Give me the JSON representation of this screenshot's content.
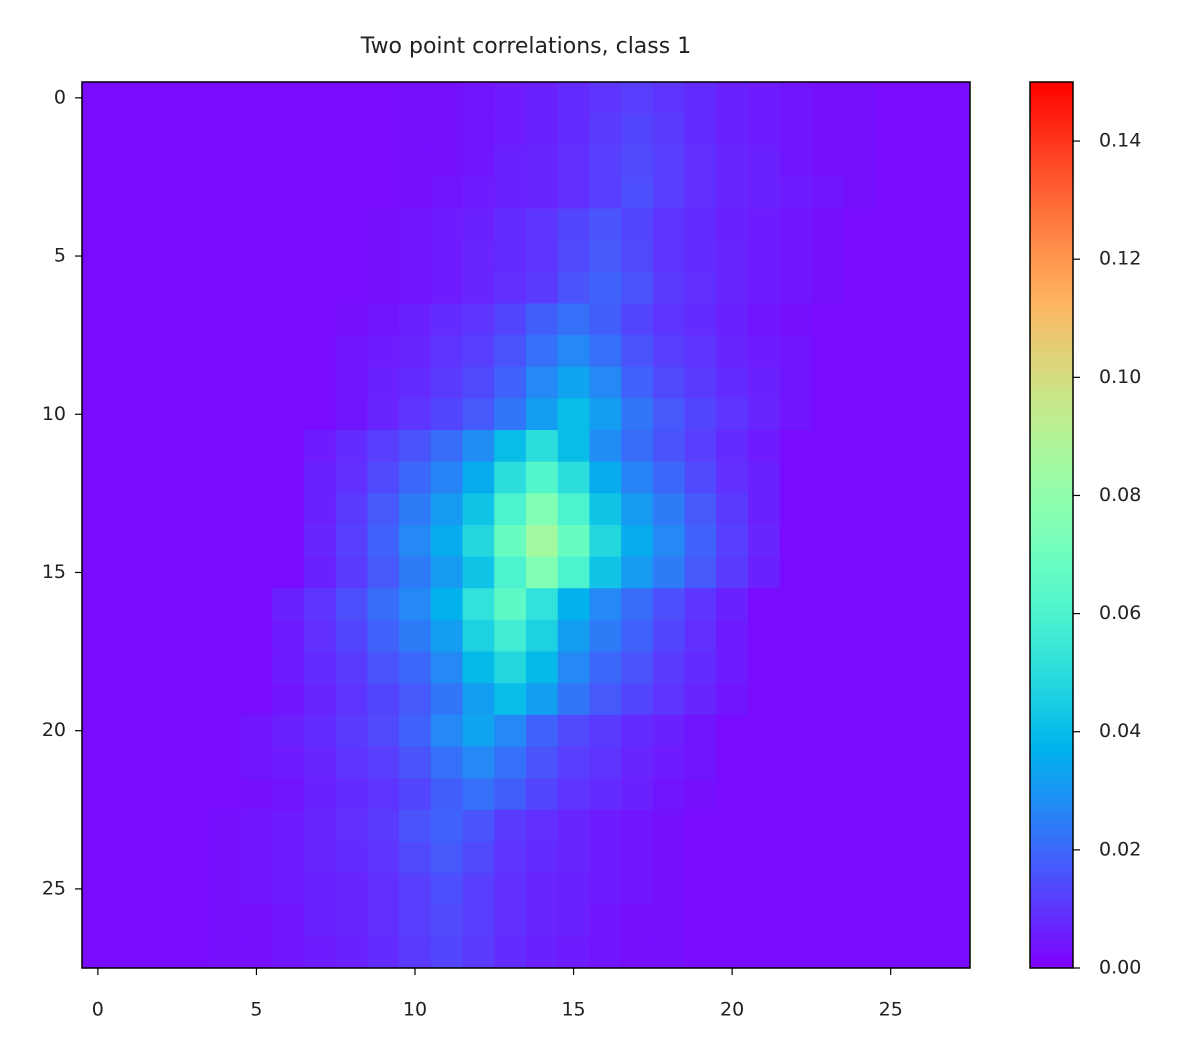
{
  "chart_data": {
    "type": "heatmap",
    "title": "Two point correlations, class 1",
    "colormap": "rainbow",
    "clim": [
      0,
      0.15
    ],
    "xlim": [
      -0.5,
      27.5
    ],
    "ylim": [
      27.5,
      -0.5
    ],
    "xticks": [
      0,
      5,
      10,
      15,
      20,
      25
    ],
    "yticks": [
      0,
      5,
      10,
      15,
      20,
      25
    ],
    "cticks": [
      {
        "value": 0,
        "label": "0.00"
      },
      {
        "value": 0.02,
        "label": "0.02"
      },
      {
        "value": 0.04,
        "label": "0.04"
      },
      {
        "value": 0.06,
        "label": "0.06"
      },
      {
        "value": 0.08,
        "label": "0.08"
      },
      {
        "value": 0.1,
        "label": "0.10"
      },
      {
        "value": 0.12,
        "label": "0.12"
      },
      {
        "value": 0.14,
        "label": "0.14"
      }
    ],
    "z": [
      [
        0.002,
        0.002,
        0.002,
        0.002,
        0.002,
        0.002,
        0.002,
        0.002,
        0.002,
        0.002,
        0.003,
        0.003,
        0.004,
        0.005,
        0.006,
        0.008,
        0.01,
        0.012,
        0.01,
        0.008,
        0.006,
        0.005,
        0.004,
        0.003,
        0.003,
        0.002,
        0.002,
        0.002
      ],
      [
        0.002,
        0.002,
        0.002,
        0.002,
        0.002,
        0.002,
        0.002,
        0.002,
        0.002,
        0.002,
        0.003,
        0.003,
        0.004,
        0.005,
        0.006,
        0.008,
        0.011,
        0.013,
        0.011,
        0.008,
        0.006,
        0.005,
        0.004,
        0.003,
        0.003,
        0.002,
        0.002,
        0.002
      ],
      [
        0.002,
        0.002,
        0.002,
        0.002,
        0.002,
        0.002,
        0.002,
        0.002,
        0.002,
        0.002,
        0.003,
        0.003,
        0.004,
        0.006,
        0.007,
        0.009,
        0.012,
        0.014,
        0.012,
        0.009,
        0.007,
        0.006,
        0.004,
        0.003,
        0.003,
        0.002,
        0.002,
        0.002
      ],
      [
        0.002,
        0.002,
        0.002,
        0.002,
        0.002,
        0.002,
        0.002,
        0.002,
        0.002,
        0.002,
        0.003,
        0.004,
        0.005,
        0.006,
        0.007,
        0.009,
        0.012,
        0.015,
        0.012,
        0.009,
        0.007,
        0.006,
        0.005,
        0.004,
        0.003,
        0.002,
        0.002,
        0.002
      ],
      [
        0.002,
        0.002,
        0.002,
        0.002,
        0.002,
        0.002,
        0.002,
        0.002,
        0.002,
        0.003,
        0.004,
        0.005,
        0.006,
        0.008,
        0.01,
        0.013,
        0.016,
        0.013,
        0.01,
        0.008,
        0.006,
        0.005,
        0.004,
        0.003,
        0.002,
        0.002,
        0.002,
        0.002
      ],
      [
        0.002,
        0.002,
        0.002,
        0.002,
        0.002,
        0.002,
        0.002,
        0.002,
        0.002,
        0.003,
        0.004,
        0.005,
        0.007,
        0.008,
        0.01,
        0.014,
        0.017,
        0.014,
        0.01,
        0.008,
        0.007,
        0.005,
        0.004,
        0.003,
        0.002,
        0.002,
        0.002,
        0.002
      ],
      [
        0.002,
        0.002,
        0.002,
        0.002,
        0.002,
        0.002,
        0.002,
        0.002,
        0.002,
        0.003,
        0.004,
        0.005,
        0.007,
        0.009,
        0.011,
        0.016,
        0.019,
        0.016,
        0.011,
        0.009,
        0.007,
        0.005,
        0.004,
        0.003,
        0.002,
        0.002,
        0.002,
        0.002
      ],
      [
        0.002,
        0.002,
        0.002,
        0.002,
        0.002,
        0.002,
        0.002,
        0.002,
        0.003,
        0.004,
        0.006,
        0.008,
        0.01,
        0.013,
        0.018,
        0.022,
        0.018,
        0.013,
        0.01,
        0.008,
        0.006,
        0.004,
        0.003,
        0.002,
        0.002,
        0.002,
        0.002,
        0.002
      ],
      [
        0.002,
        0.002,
        0.002,
        0.002,
        0.002,
        0.002,
        0.002,
        0.002,
        0.004,
        0.005,
        0.007,
        0.01,
        0.012,
        0.016,
        0.022,
        0.027,
        0.022,
        0.016,
        0.012,
        0.01,
        0.007,
        0.005,
        0.004,
        0.002,
        0.002,
        0.002,
        0.002,
        0.002
      ],
      [
        0.002,
        0.002,
        0.002,
        0.002,
        0.002,
        0.002,
        0.002,
        0.002,
        0.004,
        0.006,
        0.008,
        0.011,
        0.014,
        0.019,
        0.027,
        0.033,
        0.027,
        0.019,
        0.014,
        0.011,
        0.008,
        0.006,
        0.004,
        0.002,
        0.002,
        0.002,
        0.002,
        0.002
      ],
      [
        0.002,
        0.002,
        0.002,
        0.002,
        0.002,
        0.002,
        0.002,
        0.002,
        0.004,
        0.007,
        0.01,
        0.013,
        0.017,
        0.023,
        0.032,
        0.04,
        0.032,
        0.023,
        0.017,
        0.013,
        0.01,
        0.007,
        0.004,
        0.002,
        0.002,
        0.002,
        0.002,
        0.002
      ],
      [
        0.002,
        0.002,
        0.002,
        0.002,
        0.002,
        0.002,
        0.002,
        0.005,
        0.008,
        0.012,
        0.016,
        0.021,
        0.028,
        0.04,
        0.05,
        0.04,
        0.028,
        0.021,
        0.016,
        0.012,
        0.008,
        0.005,
        0.002,
        0.002,
        0.002,
        0.002,
        0.002,
        0.002
      ],
      [
        0.002,
        0.002,
        0.002,
        0.002,
        0.002,
        0.002,
        0.002,
        0.006,
        0.009,
        0.014,
        0.02,
        0.026,
        0.035,
        0.05,
        0.062,
        0.05,
        0.035,
        0.026,
        0.02,
        0.014,
        0.009,
        0.006,
        0.002,
        0.002,
        0.002,
        0.002,
        0.002,
        0.002
      ],
      [
        0.002,
        0.002,
        0.002,
        0.002,
        0.002,
        0.002,
        0.002,
        0.006,
        0.011,
        0.017,
        0.024,
        0.031,
        0.042,
        0.06,
        0.075,
        0.06,
        0.042,
        0.031,
        0.024,
        0.017,
        0.011,
        0.006,
        0.002,
        0.002,
        0.002,
        0.002,
        0.002,
        0.002
      ],
      [
        0.002,
        0.002,
        0.002,
        0.002,
        0.002,
        0.002,
        0.002,
        0.007,
        0.012,
        0.019,
        0.027,
        0.035,
        0.048,
        0.068,
        0.085,
        0.068,
        0.048,
        0.035,
        0.027,
        0.019,
        0.012,
        0.007,
        0.002,
        0.002,
        0.002,
        0.002,
        0.002,
        0.002
      ],
      [
        0.002,
        0.002,
        0.002,
        0.002,
        0.002,
        0.002,
        0.002,
        0.006,
        0.011,
        0.017,
        0.024,
        0.031,
        0.042,
        0.06,
        0.075,
        0.06,
        0.042,
        0.031,
        0.024,
        0.017,
        0.011,
        0.006,
        0.002,
        0.002,
        0.002,
        0.002,
        0.002,
        0.002
      ],
      [
        0.002,
        0.002,
        0.002,
        0.002,
        0.002,
        0.002,
        0.006,
        0.01,
        0.015,
        0.021,
        0.027,
        0.037,
        0.052,
        0.065,
        0.052,
        0.037,
        0.027,
        0.021,
        0.015,
        0.01,
        0.006,
        0.002,
        0.002,
        0.002,
        0.002,
        0.002,
        0.002,
        0.002
      ],
      [
        0.002,
        0.002,
        0.002,
        0.002,
        0.002,
        0.002,
        0.005,
        0.009,
        0.013,
        0.019,
        0.024,
        0.032,
        0.046,
        0.057,
        0.046,
        0.032,
        0.024,
        0.019,
        0.013,
        0.009,
        0.005,
        0.002,
        0.002,
        0.002,
        0.002,
        0.002,
        0.002,
        0.002
      ],
      [
        0.002,
        0.002,
        0.002,
        0.002,
        0.002,
        0.002,
        0.005,
        0.008,
        0.011,
        0.016,
        0.02,
        0.027,
        0.039,
        0.048,
        0.039,
        0.027,
        0.02,
        0.016,
        0.011,
        0.008,
        0.005,
        0.002,
        0.002,
        0.002,
        0.002,
        0.002,
        0.002,
        0.002
      ],
      [
        0.002,
        0.002,
        0.002,
        0.002,
        0.002,
        0.002,
        0.004,
        0.007,
        0.01,
        0.013,
        0.017,
        0.023,
        0.032,
        0.04,
        0.032,
        0.023,
        0.017,
        0.013,
        0.01,
        0.007,
        0.004,
        0.002,
        0.002,
        0.002,
        0.002,
        0.002,
        0.002,
        0.002
      ],
      [
        0.002,
        0.002,
        0.002,
        0.002,
        0.002,
        0.004,
        0.006,
        0.008,
        0.011,
        0.014,
        0.019,
        0.027,
        0.033,
        0.027,
        0.019,
        0.014,
        0.011,
        0.008,
        0.006,
        0.004,
        0.002,
        0.002,
        0.002,
        0.002,
        0.002,
        0.002,
        0.002,
        0.002
      ],
      [
        0.002,
        0.002,
        0.002,
        0.002,
        0.002,
        0.004,
        0.005,
        0.007,
        0.01,
        0.012,
        0.016,
        0.022,
        0.027,
        0.022,
        0.016,
        0.012,
        0.01,
        0.007,
        0.005,
        0.004,
        0.002,
        0.002,
        0.002,
        0.002,
        0.002,
        0.002,
        0.002,
        0.002
      ],
      [
        0.002,
        0.002,
        0.002,
        0.002,
        0.002,
        0.003,
        0.004,
        0.006,
        0.008,
        0.01,
        0.013,
        0.018,
        0.022,
        0.018,
        0.013,
        0.01,
        0.008,
        0.006,
        0.004,
        0.003,
        0.002,
        0.002,
        0.002,
        0.002,
        0.002,
        0.002,
        0.002,
        0.002
      ],
      [
        0.002,
        0.002,
        0.002,
        0.002,
        0.003,
        0.004,
        0.005,
        0.007,
        0.009,
        0.011,
        0.016,
        0.019,
        0.016,
        0.011,
        0.009,
        0.007,
        0.005,
        0.004,
        0.003,
        0.002,
        0.002,
        0.002,
        0.002,
        0.002,
        0.002,
        0.002,
        0.002,
        0.002
      ],
      [
        0.002,
        0.002,
        0.002,
        0.002,
        0.003,
        0.004,
        0.005,
        0.007,
        0.008,
        0.01,
        0.014,
        0.017,
        0.014,
        0.01,
        0.008,
        0.007,
        0.005,
        0.004,
        0.003,
        0.002,
        0.002,
        0.002,
        0.002,
        0.002,
        0.002,
        0.002,
        0.002,
        0.002
      ],
      [
        0.002,
        0.002,
        0.002,
        0.002,
        0.003,
        0.004,
        0.005,
        0.006,
        0.007,
        0.009,
        0.012,
        0.015,
        0.012,
        0.009,
        0.007,
        0.006,
        0.005,
        0.004,
        0.003,
        0.002,
        0.002,
        0.002,
        0.002,
        0.002,
        0.002,
        0.002,
        0.002,
        0.002
      ],
      [
        0.002,
        0.002,
        0.002,
        0.002,
        0.003,
        0.003,
        0.004,
        0.006,
        0.007,
        0.009,
        0.012,
        0.014,
        0.012,
        0.009,
        0.007,
        0.006,
        0.004,
        0.003,
        0.003,
        0.002,
        0.002,
        0.002,
        0.002,
        0.002,
        0.002,
        0.002,
        0.002,
        0.002
      ],
      [
        0.002,
        0.002,
        0.002,
        0.002,
        0.003,
        0.003,
        0.004,
        0.005,
        0.006,
        0.008,
        0.011,
        0.013,
        0.011,
        0.008,
        0.006,
        0.005,
        0.004,
        0.003,
        0.003,
        0.002,
        0.002,
        0.002,
        0.002,
        0.002,
        0.002,
        0.002,
        0.002,
        0.002
      ]
    ]
  }
}
